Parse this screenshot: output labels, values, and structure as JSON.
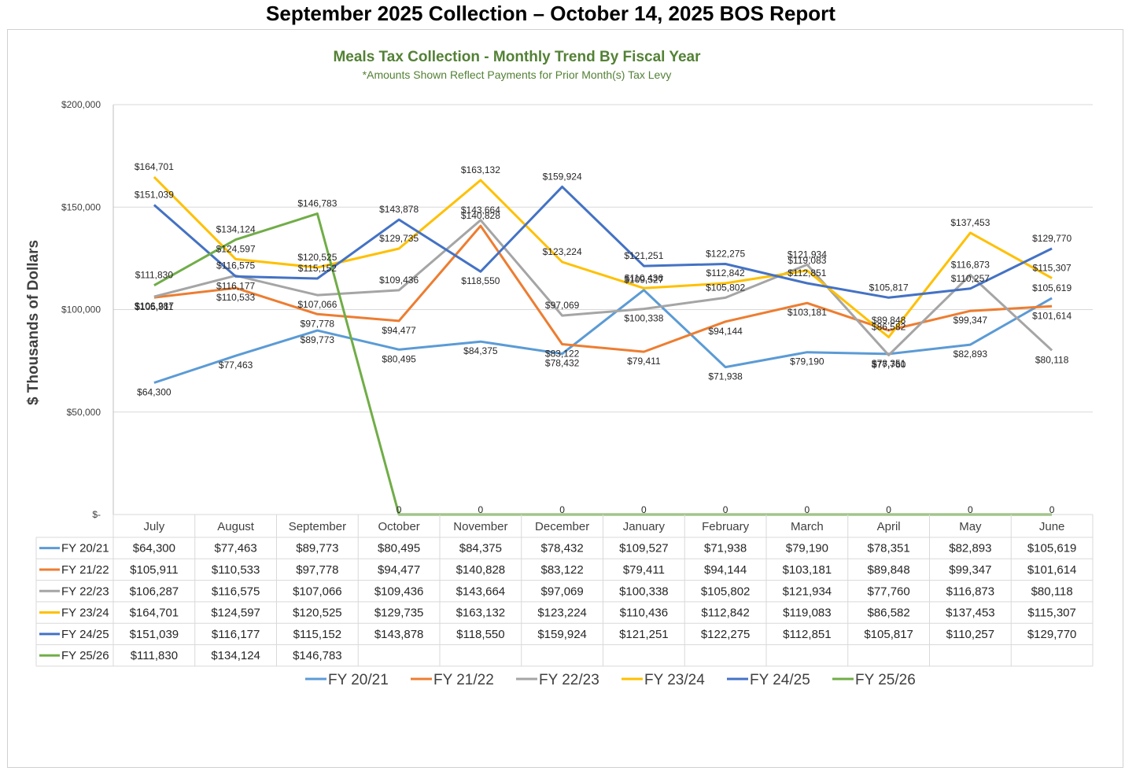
{
  "page": {
    "title": "September  2025 Collection – October 14, 2025 BOS Report"
  },
  "chart_data": {
    "type": "line",
    "title": "Meals Tax Collection - Monthly Trend By Fiscal Year",
    "subtitle": "*Amounts Shown Reflect Payments for Prior Month(s) Tax Levy",
    "ylabel": "$ Thousands of Dollars",
    "xlabel": "",
    "ylim": [
      0,
      200000
    ],
    "y_ticks": [
      0,
      50000,
      100000,
      150000,
      200000
    ],
    "y_tick_labels": [
      "$-",
      "$50,000",
      "$100,000",
      "$150,000",
      "$200,000"
    ],
    "grid": true,
    "legend_position": "bottom",
    "data_table": true,
    "categories": [
      "July",
      "August",
      "September",
      "October",
      "November",
      "December",
      "January",
      "February",
      "March",
      "April",
      "May",
      "June"
    ],
    "series": [
      {
        "name": "FY 20/21",
        "color": "#5B9BD5",
        "values": [
          64300,
          77463,
          89773,
          80495,
          84375,
          78432,
          109527,
          71938,
          79190,
          78351,
          82893,
          105619
        ]
      },
      {
        "name": "FY 21/22",
        "color": "#ED7D31",
        "values": [
          105911,
          110533,
          97778,
          94477,
          140828,
          83122,
          79411,
          94144,
          103181,
          89848,
          99347,
          101614
        ]
      },
      {
        "name": "FY 22/23",
        "color": "#A5A5A5",
        "values": [
          106287,
          116575,
          107066,
          109436,
          143664,
          97069,
          100338,
          105802,
          121934,
          77760,
          116873,
          80118
        ]
      },
      {
        "name": "FY 23/24",
        "color": "#FFC000",
        "values": [
          164701,
          124597,
          120525,
          129735,
          163132,
          123224,
          110436,
          112842,
          119083,
          86582,
          137453,
          115307
        ]
      },
      {
        "name": "FY 24/25",
        "color": "#4472C4",
        "values": [
          151039,
          116177,
          115152,
          143878,
          118550,
          159924,
          121251,
          122275,
          112851,
          105817,
          110257,
          129770
        ]
      },
      {
        "name": "FY 25/26",
        "color": "#70AD47",
        "values": [
          111830,
          134124,
          146783,
          0,
          0,
          0,
          0,
          0,
          0,
          0,
          0,
          0
        ],
        "table_values": [
          111830,
          134124,
          146783,
          null,
          null,
          null,
          null,
          null,
          null,
          null,
          null,
          null
        ]
      }
    ]
  }
}
